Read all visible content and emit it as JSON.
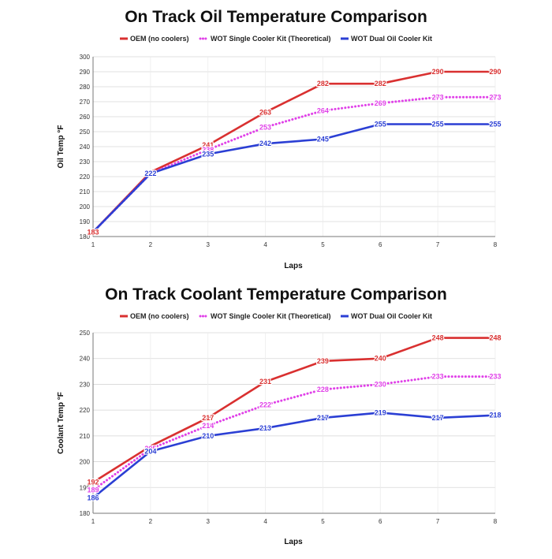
{
  "chart_data": [
    {
      "type": "line",
      "title": "On Track Oil Temperature Comparison",
      "xlabel": "Laps",
      "ylabel": "Oil Temp °F",
      "x": [
        1,
        2,
        3,
        4,
        5,
        6,
        7,
        8
      ],
      "xlim": [
        1,
        8
      ],
      "ylim": [
        180,
        300
      ],
      "yticks": [
        180,
        190,
        200,
        210,
        220,
        230,
        240,
        250,
        260,
        270,
        280,
        290,
        300
      ],
      "grid": true,
      "legend_position": "top",
      "series": [
        {
          "name": "OEM (no coolers)",
          "color": "#d93030",
          "style": "solid",
          "values": [
            183,
            223,
            241,
            263,
            282,
            282,
            290,
            290
          ],
          "labels": [
            "183",
            "",
            "241",
            "263",
            "282",
            "282",
            "290",
            "290"
          ]
        },
        {
          "name": "WOT Single Cooler Kit (Theoretical)",
          "color": "#e040e8",
          "style": "dotted",
          "values": [
            183,
            222,
            238,
            253,
            264,
            269,
            273,
            273
          ],
          "labels": [
            "",
            "222",
            "238",
            "253",
            "264",
            "269",
            "273",
            "273"
          ]
        },
        {
          "name": "WOT Dual Oil Cooler Kit",
          "color": "#2b3fd4",
          "style": "solid",
          "values": [
            183,
            222,
            235,
            242,
            245,
            255,
            255,
            255
          ],
          "labels": [
            "",
            "222",
            "235",
            "242",
            "245",
            "255",
            "255",
            "255"
          ]
        }
      ]
    },
    {
      "type": "line",
      "title": "On Track Coolant Temperature Comparison",
      "xlabel": "Laps",
      "ylabel": "Coolant Temp °F",
      "x": [
        1,
        2,
        3,
        4,
        5,
        6,
        7,
        8
      ],
      "xlim": [
        1,
        8
      ],
      "ylim": [
        180,
        250
      ],
      "yticks": [
        180,
        190,
        200,
        210,
        220,
        230,
        240,
        250
      ],
      "grid": true,
      "legend_position": "top",
      "series": [
        {
          "name": "OEM (no coolers)",
          "color": "#d93030",
          "style": "solid",
          "values": [
            192,
            206,
            217,
            231,
            239,
            240,
            248,
            248
          ],
          "labels": [
            "192",
            "",
            "217",
            "231",
            "239",
            "240",
            "248",
            "248"
          ]
        },
        {
          "name": "WOT Single Cooler Kit (Theoretical)",
          "color": "#e040e8",
          "style": "dotted",
          "values": [
            189,
            205,
            214,
            222,
            228,
            230,
            233,
            233
          ],
          "labels": [
            "189",
            "205",
            "214",
            "222",
            "228",
            "230",
            "233",
            "233"
          ]
        },
        {
          "name": "WOT Dual Oil Cooler Kit",
          "color": "#2b3fd4",
          "style": "solid",
          "values": [
            186,
            204,
            210,
            213,
            217,
            219,
            217,
            218
          ],
          "labels": [
            "186",
            "204",
            "210",
            "213",
            "217",
            "219",
            "217",
            "218"
          ]
        }
      ]
    }
  ]
}
